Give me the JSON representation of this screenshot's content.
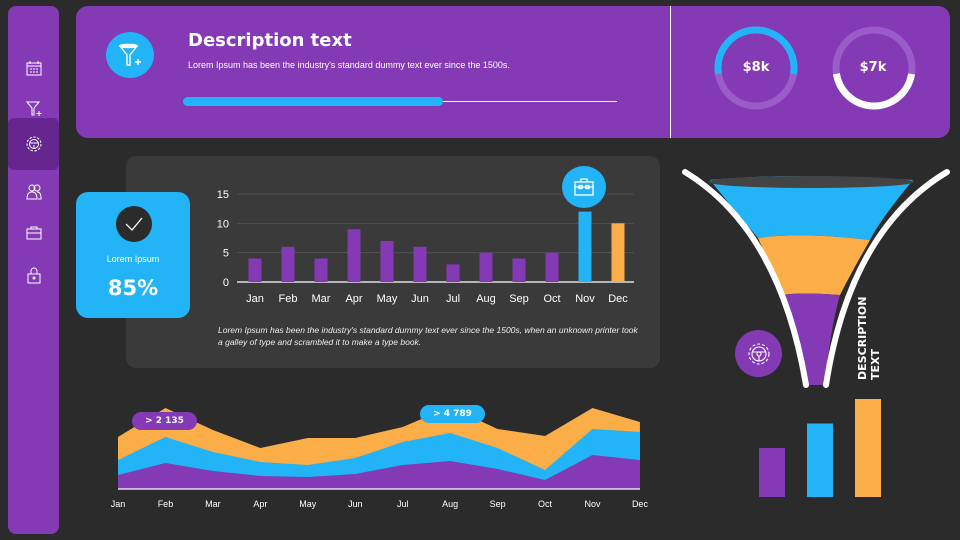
{
  "colors": {
    "background": "#2b2b2b",
    "purple": "#8439b5",
    "blue": "#23b3f7",
    "orange": "#fbad47",
    "panel": "#3a3a3a"
  },
  "sidebar": {
    "items": [
      {
        "icon": "calendar-icon",
        "active": false
      },
      {
        "icon": "funnel-plus-icon",
        "active": false
      },
      {
        "icon": "gear-steering-icon",
        "active": true
      },
      {
        "icon": "users-icon",
        "active": false
      },
      {
        "icon": "briefcase-icon",
        "active": false
      },
      {
        "icon": "lock-icon",
        "active": false
      }
    ]
  },
  "header": {
    "icon": "funnel-plus-icon",
    "title": "Description text",
    "subtitle": "Lorem Ipsum has been the industry's standard dummy text ever since the 1500s.",
    "progress": 0.6,
    "donuts": [
      {
        "label": "$8k",
        "fraction": 0.55,
        "color": "#23b3f7"
      },
      {
        "label": "$7k",
        "fraction": 0.45,
        "color": "#ffffff"
      }
    ]
  },
  "kpi": {
    "icon": "checkmark-icon",
    "label": "Lorem Ipsum",
    "value": "85%"
  },
  "chart_data": [
    {
      "type": "bar",
      "categories": [
        "Jan",
        "Feb",
        "Mar",
        "Apr",
        "May",
        "Jun",
        "Jul",
        "Aug",
        "Sep",
        "Oct",
        "Nov",
        "Dec"
      ],
      "values": [
        4,
        6,
        4,
        9,
        7,
        6,
        3,
        5,
        4,
        5,
        12,
        10
      ],
      "bar_colors": [
        "#8439b5",
        "#8439b5",
        "#8439b5",
        "#8439b5",
        "#8439b5",
        "#8439b5",
        "#8439b5",
        "#8439b5",
        "#8439b5",
        "#8439b5",
        "#23b3f7",
        "#fbad47"
      ],
      "yticks": [
        0,
        5,
        10,
        15
      ],
      "ylim": [
        0,
        15
      ],
      "grid": true,
      "highlight_icon": "briefcase-icon",
      "note": "Lorem Ipsum has been the industry's standard dummy text ever since the 1500s, when an unknown printer took a galley of type and scrambled it  to make a type book."
    },
    {
      "type": "area",
      "stacked": true,
      "categories": [
        "Jan",
        "Feb",
        "Mar",
        "Apr",
        "May",
        "Jun",
        "Jul",
        "Aug",
        "Sep",
        "Oct",
        "Nov",
        "Dec"
      ],
      "series": [
        {
          "color": "#8439b5",
          "values": [
            14,
            26,
            18,
            13,
            12,
            15,
            24,
            28,
            20,
            9,
            34,
            29
          ]
        },
        {
          "color": "#23b3f7",
          "values": [
            15,
            26,
            19,
            14,
            12,
            16,
            23,
            28,
            21,
            10,
            26,
            28
          ]
        },
        {
          "color": "#fbad47",
          "values": [
            23,
            29,
            22,
            14,
            27,
            20,
            15,
            26,
            19,
            34,
            21,
            10
          ]
        }
      ],
      "annotations": [
        {
          "category": "Feb",
          "text": "> 2 135",
          "color": "#8439b5"
        },
        {
          "category": "Aug",
          "text": "> 4 789",
          "color": "#23b3f7"
        }
      ]
    }
  ],
  "funnel": {
    "layers": [
      "#23b3f7",
      "#fbad47",
      "#8439b5"
    ],
    "icon": "gear-steering-icon",
    "text_line1": "DESCRIPTION",
    "text_line2": "TEXT",
    "bars": [
      {
        "color": "#8439b5",
        "value": 1
      },
      {
        "color": "#23b3f7",
        "value": 1.5
      },
      {
        "color": "#fbad47",
        "value": 2
      }
    ]
  }
}
